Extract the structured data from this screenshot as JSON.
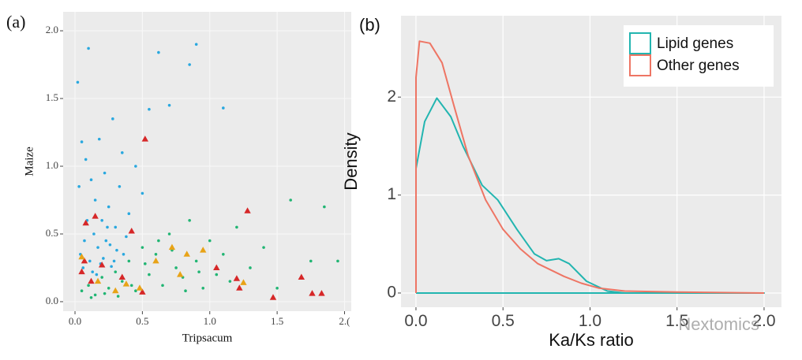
{
  "chart_data": [
    {
      "type": "scatter",
      "panel_label": "(a)",
      "x_label": "Tripsacum",
      "y_label": "Maize",
      "xlim": [
        -0.088,
        2.05
      ],
      "ylim": [
        -0.07,
        2.14
      ],
      "grid": true,
      "xticks": [
        {
          "value": 0,
          "label": "0.0"
        },
        {
          "value": 0.5,
          "label": "0.5"
        },
        {
          "value": 1,
          "label": "1.0"
        },
        {
          "value": 1.5,
          "label": "1.5"
        },
        {
          "value": 2,
          "label": "2.("
        }
      ],
      "yticks": [
        {
          "value": 0,
          "label": "0.0"
        },
        {
          "value": 0.5,
          "label": "0.5"
        },
        {
          "value": 1,
          "label": "1.0"
        },
        {
          "value": 1.5,
          "label": "1.5"
        },
        {
          "value": 2,
          "label": "2.0"
        }
      ],
      "series": [
        {
          "color": "#29a8df",
          "marker": "circle",
          "x": [
            0.02,
            0.05,
            0.08,
            0.1,
            0.12,
            0.15,
            0.18,
            0.2,
            0.22,
            0.25,
            0.28,
            0.3,
            0.33,
            0.35,
            0.4,
            0.45,
            0.5,
            0.04,
            0.07,
            0.11,
            0.14,
            0.17,
            0.21,
            0.26,
            0.31,
            0.38,
            0.06,
            0.09,
            0.13,
            0.19,
            0.24,
            0.29,
            0.36,
            0.55,
            0.62,
            0.7,
            0.85,
            0.9,
            1.1,
            0.16,
            0.23,
            0.03,
            0.27
          ],
          "values": [
            1.62,
            1.18,
            1.05,
            1.87,
            0.9,
            0.75,
            1.2,
            0.6,
            0.95,
            0.7,
            1.35,
            0.55,
            0.85,
            1.1,
            0.65,
            1.0,
            0.8,
            0.35,
            0.45,
            0.3,
            0.5,
            0.4,
            0.32,
            0.42,
            0.38,
            0.48,
            0.25,
            0.6,
            0.22,
            0.28,
            0.55,
            0.3,
            0.35,
            1.42,
            1.84,
            1.45,
            1.75,
            1.9,
            1.43,
            0.2,
            0.45,
            0.85,
            0.26
          ]
        },
        {
          "color": "#21b573",
          "marker": "circle",
          "x": [
            0.05,
            0.1,
            0.15,
            0.2,
            0.25,
            0.3,
            0.35,
            0.4,
            0.45,
            0.5,
            0.55,
            0.6,
            0.65,
            0.7,
            0.75,
            0.8,
            0.85,
            0.9,
            0.95,
            1.0,
            1.05,
            1.1,
            1.15,
            1.2,
            1.3,
            1.4,
            1.5,
            1.6,
            1.75,
            1.85,
            1.95,
            0.12,
            0.22,
            0.32,
            0.42,
            0.52,
            0.62,
            0.72,
            0.82,
            0.92
          ],
          "values": [
            0.08,
            0.12,
            0.05,
            0.18,
            0.1,
            0.22,
            0.15,
            0.3,
            0.08,
            0.4,
            0.2,
            0.35,
            0.12,
            0.5,
            0.25,
            0.18,
            0.6,
            0.3,
            0.1,
            0.45,
            0.2,
            0.35,
            0.15,
            0.55,
            0.25,
            0.4,
            0.1,
            0.75,
            0.3,
            0.7,
            0.3,
            0.03,
            0.06,
            0.04,
            0.12,
            0.28,
            0.45,
            0.38,
            0.08,
            0.22
          ]
        },
        {
          "color": "#d62728",
          "marker": "triangle",
          "x": [
            0.52,
            0.08,
            0.15,
            0.42,
            0.07,
            0.05,
            0.12,
            0.2,
            0.35,
            0.5,
            1.05,
            1.2,
            1.28,
            1.47,
            1.68,
            1.76,
            1.83,
            1.22
          ],
          "values": [
            1.2,
            0.58,
            0.63,
            0.52,
            0.3,
            0.22,
            0.15,
            0.27,
            0.18,
            0.07,
            0.25,
            0.17,
            0.67,
            0.03,
            0.18,
            0.06,
            0.06,
            0.1
          ]
        },
        {
          "color": "#e8a317",
          "marker": "triangle",
          "x": [
            0.05,
            0.17,
            0.3,
            0.48,
            0.6,
            0.78,
            0.83,
            0.95,
            1.25,
            0.72,
            0.38
          ],
          "values": [
            0.33,
            0.15,
            0.08,
            0.1,
            0.3,
            0.2,
            0.35,
            0.38,
            0.14,
            0.4,
            0.13
          ]
        }
      ]
    },
    {
      "type": "line",
      "panel_label": "(b)",
      "x_label": "Ka/Ks ratio",
      "y_label": "Density",
      "xlim": [
        -0.086,
        2.1
      ],
      "ylim": [
        -0.145,
        2.83
      ],
      "grid": true,
      "legend": "top-right",
      "xticks": [
        {
          "value": 0,
          "label": "0.0"
        },
        {
          "value": 0.5,
          "label": "0.5"
        },
        {
          "value": 1,
          "label": "1.0"
        },
        {
          "value": 1.5,
          "label": "1.5"
        },
        {
          "value": 2,
          "label": "2.0"
        }
      ],
      "yticks": [
        0,
        1,
        2
      ],
      "series": [
        {
          "name": "Lipid genes",
          "color": "#22b5b0",
          "x": [
            0,
            0,
            0.05,
            0.12,
            0.2,
            0.27,
            0.38,
            0.47,
            0.58,
            0.68,
            0.75,
            0.82,
            0.88,
            0.98,
            1.1,
            1.2,
            2.0,
            0
          ],
          "values": [
            0,
            1.27,
            1.75,
            1.99,
            1.8,
            1.5,
            1.1,
            0.95,
            0.65,
            0.4,
            0.33,
            0.35,
            0.3,
            0.12,
            0.02,
            0,
            0,
            0
          ]
        },
        {
          "name": "Other genes",
          "color": "#ee7564",
          "x": [
            0,
            0,
            0.02,
            0.08,
            0.15,
            0.22,
            0.3,
            0.4,
            0.5,
            0.6,
            0.7,
            0.85,
            0.95,
            1.05,
            1.2,
            1.5,
            2.0
          ],
          "values": [
            0,
            2.2,
            2.57,
            2.55,
            2.35,
            1.9,
            1.4,
            0.95,
            0.65,
            0.45,
            0.3,
            0.17,
            0.1,
            0.05,
            0.02,
            0.01,
            0
          ]
        }
      ]
    }
  ],
  "watermark": "Nextomics"
}
